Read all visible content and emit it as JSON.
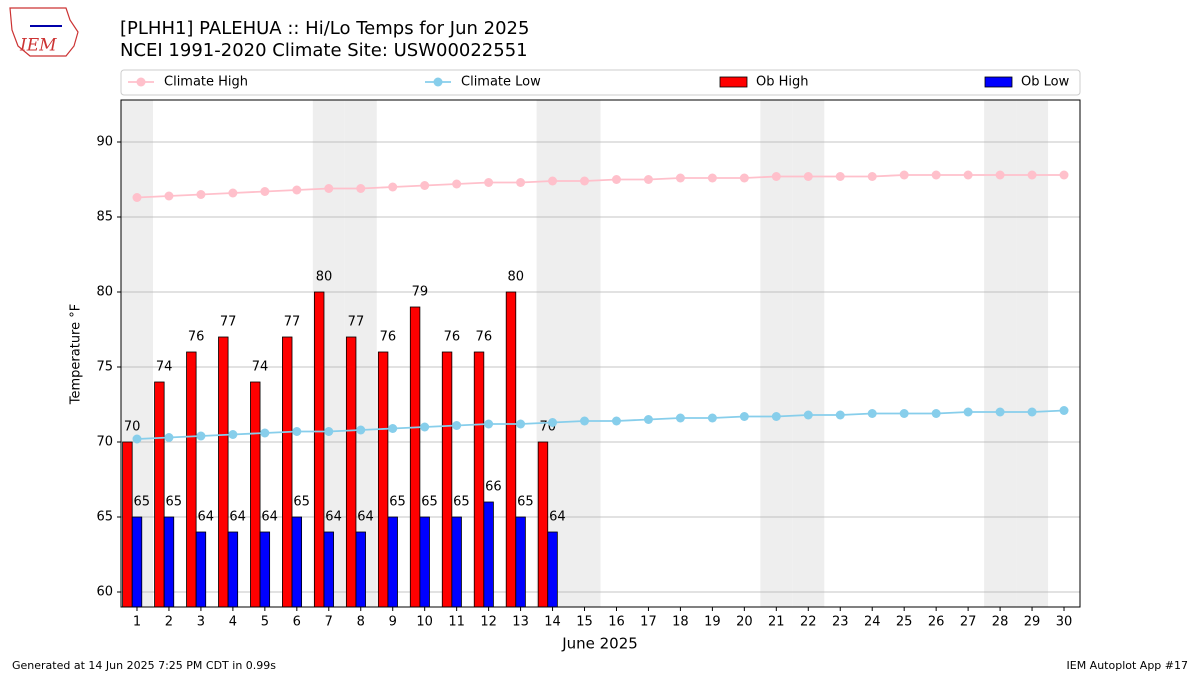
{
  "chart_data": {
    "type": "bar",
    "title": "[PLHH1] PALEHUA :: Hi/Lo Temps for Jun 2025",
    "subtitle": "NCEI 1991-2020 Climate Site: USW00022551",
    "x_label": "June 2025",
    "y_label": "Temperature °F",
    "footer_left": "Generated at 14 Jun 2025 7:25 PM CDT in 0.99s",
    "footer_right": "IEM Autoplot App #17",
    "logo": "IEM",
    "x": [
      1,
      2,
      3,
      4,
      5,
      6,
      7,
      8,
      9,
      10,
      11,
      12,
      13,
      14,
      15,
      16,
      17,
      18,
      19,
      20,
      21,
      22,
      23,
      24,
      25,
      26,
      27,
      28,
      29,
      30
    ],
    "xlim": [
      0.5,
      30.5
    ],
    "xticks": [
      1,
      2,
      3,
      4,
      5,
      6,
      7,
      8,
      9,
      10,
      11,
      12,
      13,
      14,
      15,
      16,
      17,
      18,
      19,
      20,
      21,
      22,
      23,
      24,
      25,
      26,
      27,
      28,
      29,
      30
    ],
    "ylim": [
      59,
      92.8
    ],
    "yticks": [
      60,
      65,
      70,
      75,
      80,
      85,
      90
    ],
    "grid": true,
    "shaded_days": [
      1,
      7,
      8,
      14,
      15,
      21,
      22,
      28,
      29
    ],
    "series": [
      {
        "name": "Climate High",
        "type": "line",
        "color": "#ffc0cb",
        "values": [
          86.3,
          86.4,
          86.5,
          86.6,
          86.7,
          86.8,
          86.9,
          86.9,
          87.0,
          87.1,
          87.2,
          87.3,
          87.3,
          87.4,
          87.4,
          87.5,
          87.5,
          87.6,
          87.6,
          87.6,
          87.7,
          87.7,
          87.7,
          87.7,
          87.8,
          87.8,
          87.8,
          87.8,
          87.8,
          87.8
        ]
      },
      {
        "name": "Climate Low",
        "type": "line",
        "color": "#87ceeb",
        "values": [
          70.2,
          70.3,
          70.4,
          70.5,
          70.6,
          70.7,
          70.7,
          70.8,
          70.9,
          71.0,
          71.1,
          71.2,
          71.2,
          71.3,
          71.4,
          71.4,
          71.5,
          71.6,
          71.6,
          71.7,
          71.7,
          71.8,
          71.8,
          71.9,
          71.9,
          71.9,
          72.0,
          72.0,
          72.0,
          72.1
        ]
      },
      {
        "name": "Ob High",
        "type": "bar",
        "color": "#ff0000",
        "values": [
          70,
          74,
          76,
          77,
          74,
          77,
          80,
          77,
          76,
          79,
          76,
          76,
          80,
          70,
          null,
          null,
          null,
          null,
          null,
          null,
          null,
          null,
          null,
          null,
          null,
          null,
          null,
          null,
          null,
          null
        ]
      },
      {
        "name": "Ob Low",
        "type": "bar",
        "color": "#0000ff",
        "values": [
          65,
          65,
          64,
          64,
          64,
          65,
          64,
          64,
          65,
          65,
          65,
          66,
          65,
          64,
          null,
          null,
          null,
          null,
          null,
          null,
          null,
          null,
          null,
          null,
          null,
          null,
          null,
          null,
          null,
          null
        ]
      }
    ]
  }
}
